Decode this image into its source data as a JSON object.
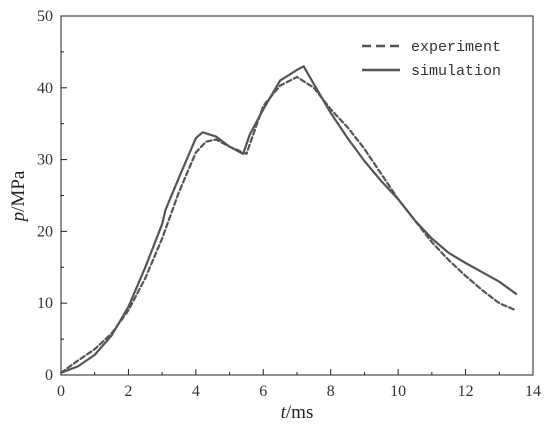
{
  "chart_data": {
    "type": "line",
    "title": "",
    "xlabel_italic": "t",
    "xlabel_unit": "/ms",
    "ylabel_italic": "p",
    "ylabel_unit": "/MPa",
    "xlim": [
      0,
      14
    ],
    "ylim": [
      0,
      50
    ],
    "xticks": [
      0,
      2,
      4,
      6,
      8,
      10,
      12,
      14
    ],
    "yticks": [
      0,
      10,
      20,
      30,
      40,
      50
    ],
    "grid": false,
    "legend_position": "top-right",
    "series": [
      {
        "name": "experiment",
        "style": "dashed",
        "color": "#555555",
        "x": [
          0,
          0.5,
          1.0,
          1.5,
          2.0,
          2.5,
          3.0,
          3.5,
          4.0,
          4.3,
          4.6,
          5.0,
          5.5,
          6.0,
          6.5,
          7.0,
          7.5,
          8.0,
          8.5,
          9.0,
          9.5,
          10.0,
          10.5,
          11.0,
          11.5,
          12.0,
          12.5,
          13.0,
          13.5
        ],
        "y": [
          0.3,
          2.0,
          3.6,
          5.8,
          9.0,
          13.5,
          19.0,
          25.5,
          31.0,
          32.5,
          32.8,
          31.8,
          30.8,
          37.5,
          40.3,
          41.5,
          40.0,
          37.0,
          34.5,
          31.5,
          28.0,
          24.5,
          21.5,
          18.5,
          16.0,
          13.8,
          11.8,
          10.0,
          9.0
        ]
      },
      {
        "name": "simulation",
        "style": "solid",
        "color": "#555555",
        "x": [
          0,
          0.5,
          1.0,
          1.5,
          2.0,
          2.5,
          3.0,
          3.1,
          3.5,
          4.0,
          4.2,
          4.6,
          5.0,
          5.4,
          5.6,
          6.0,
          6.5,
          7.0,
          7.2,
          7.5,
          8.0,
          8.5,
          9.0,
          9.5,
          10.0,
          10.5,
          11.0,
          11.5,
          12.0,
          12.5,
          13.0,
          13.5
        ],
        "y": [
          0.3,
          1.2,
          2.8,
          5.5,
          9.5,
          15.0,
          21.0,
          23.0,
          27.5,
          33.0,
          33.8,
          33.2,
          31.8,
          30.8,
          33.5,
          37.0,
          41.0,
          42.5,
          43.0,
          40.5,
          36.5,
          33.0,
          29.8,
          27.0,
          24.5,
          21.5,
          19.0,
          17.0,
          15.6,
          14.3,
          13.0,
          11.3
        ]
      }
    ]
  }
}
